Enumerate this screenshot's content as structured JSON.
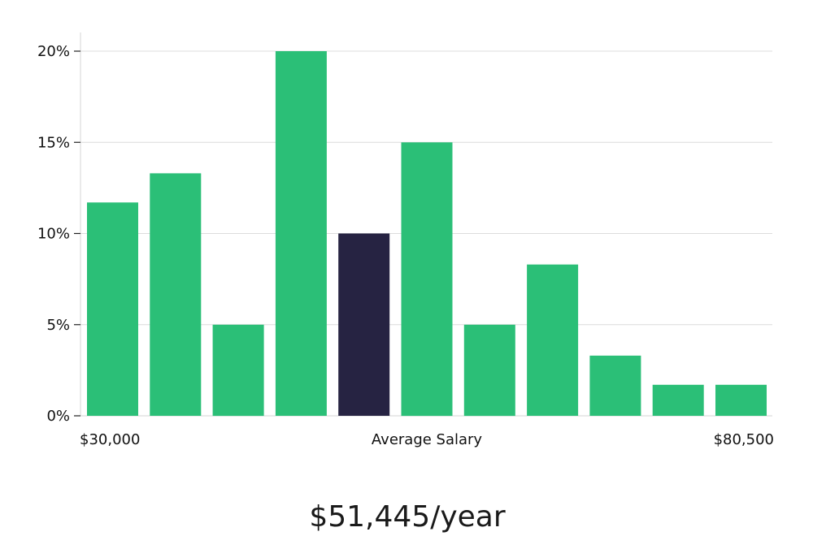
{
  "chart_data": {
    "type": "bar",
    "title": "",
    "xlabel": "Average Salary",
    "ylabel": "",
    "ylim": [
      0,
      21
    ],
    "yticks": [
      0,
      5,
      10,
      15,
      20
    ],
    "ytick_labels": [
      "0%",
      "5%",
      "10%",
      "15%",
      "20%"
    ],
    "x_min_label": "$30,000",
    "x_max_label": "$80,500",
    "values": [
      11.7,
      13.3,
      5,
      20,
      10,
      15,
      5,
      8.3,
      3.3,
      1.7,
      1.7
    ],
    "highlight_index": 4,
    "grid": true
  },
  "colors": {
    "bar": "#2bbf77",
    "bar_highlight": "#262342",
    "grid": "#dcdcdc",
    "axis": "#d4d4d4"
  },
  "headline": "$51,445/year"
}
